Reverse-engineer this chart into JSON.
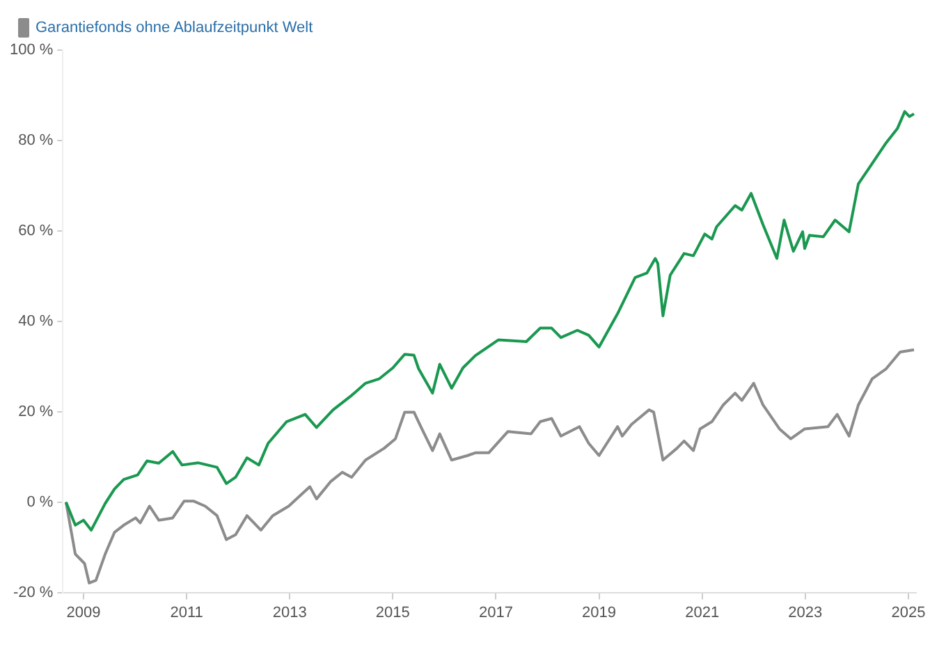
{
  "chart_data": {
    "type": "line",
    "legend": "top left",
    "grid": false,
    "marker": "none",
    "line_style": "solid",
    "xlim": [
      2008.6,
      2025.15
    ],
    "xticks": [
      2009,
      2011,
      2013,
      2015,
      2017,
      2019,
      2021,
      2023,
      2025
    ],
    "ylim": [
      -20,
      100
    ],
    "yticks": [
      {
        "value": -20,
        "label": "-20 %"
      },
      {
        "value": 0,
        "label": "0 %"
      },
      {
        "value": 20,
        "label": "20 %"
      },
      {
        "value": 40,
        "label": "40 %"
      },
      {
        "value": 60,
        "label": "60 %"
      },
      {
        "value": 80,
        "label": "80 %"
      },
      {
        "value": 100,
        "label": "100 %"
      }
    ],
    "series": [
      {
        "color": "#1a9850",
        "x": [
          2008.66,
          2008.84,
          2009.0,
          2009.15,
          2009.42,
          2009.6,
          2009.78,
          2010.05,
          2010.23,
          2010.46,
          2010.73,
          2010.91,
          2011.22,
          2011.59,
          2011.77,
          2011.95,
          2012.17,
          2012.4,
          2012.58,
          2012.94,
          2013.3,
          2013.52,
          2013.84,
          2014.2,
          2014.47,
          2014.74,
          2015.0,
          2015.23,
          2015.41,
          2015.5,
          2015.77,
          2015.91,
          2016.14,
          2016.36,
          2016.6,
          2017.05,
          2017.59,
          2017.86,
          2018.08,
          2018.26,
          2018.58,
          2018.8,
          2019.0,
          2019.36,
          2019.7,
          2019.93,
          2020.09,
          2020.14,
          2020.24,
          2020.38,
          2020.65,
          2020.83,
          2021.05,
          2021.19,
          2021.28,
          2021.64,
          2021.77,
          2021.95,
          2022.18,
          2022.45,
          2022.59,
          2022.77,
          2022.95,
          2022.99,
          2023.08,
          2023.35,
          2023.58,
          2023.85,
          2024.03,
          2024.25,
          2024.57,
          2024.79,
          2024.93,
          2025.02,
          2025.11
        ],
        "values": [
          0,
          -5.1,
          -4,
          -6.2,
          -0.3,
          2.9,
          5,
          6,
          9.1,
          8.6,
          11.2,
          8.2,
          8.7,
          7.7,
          4.1,
          5.5,
          9.8,
          8.2,
          13,
          17.8,
          19.4,
          16.5,
          20.4,
          23.6,
          26.3,
          27.3,
          29.7,
          32.7,
          32.5,
          29.5,
          24.1,
          30.5,
          25.2,
          29.7,
          32.4,
          35.9,
          35.5,
          38.5,
          38.5,
          36.4,
          38,
          36.9,
          34.3,
          41.7,
          49.7,
          50.7,
          53.9,
          52.8,
          41.2,
          50.2,
          55,
          54.5,
          59.3,
          58.2,
          60.9,
          65.6,
          64.6,
          68.3,
          61.4,
          53.9,
          62.4,
          55.5,
          59.8,
          56.1,
          59,
          58.7,
          62.4,
          59.8,
          70.4,
          74.1,
          79.5,
          82.7,
          86.4,
          85.3,
          85.9
        ]
      },
      {
        "name": "Garantiefonds ohne Ablaufzeitpunkt Welt",
        "color": "#8c8c8c",
        "x": [
          2008.66,
          2008.84,
          2009.02,
          2009.11,
          2009.24,
          2009.42,
          2009.6,
          2009.78,
          2010.01,
          2010.1,
          2010.28,
          2010.46,
          2010.73,
          2010.95,
          2011.14,
          2011.36,
          2011.59,
          2011.77,
          2011.95,
          2012.17,
          2012.44,
          2012.67,
          2012.98,
          2013.39,
          2013.52,
          2013.79,
          2014.02,
          2014.2,
          2014.47,
          2014.83,
          2015.05,
          2015.23,
          2015.41,
          2015.55,
          2015.77,
          2015.91,
          2016.14,
          2016.45,
          2016.6,
          2016.86,
          2017.23,
          2017.68,
          2017.86,
          2018.08,
          2018.26,
          2018.62,
          2018.8,
          2019.0,
          2019.36,
          2019.45,
          2019.63,
          2019.97,
          2020.06,
          2020.24,
          2020.51,
          2020.65,
          2020.83,
          2020.96,
          2021.19,
          2021.41,
          2021.64,
          2021.77,
          2022.0,
          2022.18,
          2022.5,
          2022.72,
          2022.99,
          2023.44,
          2023.62,
          2023.85,
          2024.03,
          2024.3,
          2024.57,
          2024.84,
          2025.11
        ],
        "values": [
          0,
          -11.5,
          -13.6,
          -17.9,
          -17.3,
          -11.5,
          -6.7,
          -5.1,
          -3.5,
          -4.6,
          -0.9,
          -4,
          -3.5,
          0.2,
          0.2,
          -0.9,
          -3,
          -8.3,
          -7.2,
          -3,
          -6.2,
          -3,
          -0.9,
          3.4,
          0.7,
          4.5,
          6.6,
          5.5,
          9.3,
          11.9,
          14,
          19.9,
          19.9,
          16.5,
          11.4,
          15.1,
          9.3,
          10.3,
          10.9,
          10.9,
          15.6,
          15.1,
          17.8,
          18.5,
          14.6,
          16.7,
          13,
          10.3,
          16.7,
          14.6,
          17.2,
          20.4,
          19.9,
          9.3,
          11.9,
          13.5,
          11.4,
          16.2,
          17.8,
          21.5,
          24.1,
          22.5,
          26.3,
          21.5,
          16.2,
          14,
          16.2,
          16.7,
          19.4,
          14.6,
          21.5,
          27.3,
          29.5,
          33.2,
          33.7
        ]
      }
    ]
  }
}
